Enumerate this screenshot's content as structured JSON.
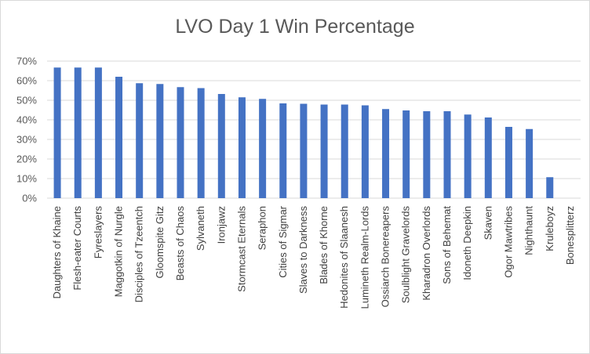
{
  "chart_data": {
    "type": "bar",
    "title": "LVO Day 1 Win Percentage",
    "xlabel": "",
    "ylabel": "",
    "ylim": [
      0,
      0.7
    ],
    "yticks": [
      "0%",
      "10%",
      "20%",
      "30%",
      "40%",
      "50%",
      "60%",
      "70%"
    ],
    "grid": true,
    "legend": "none",
    "colors": {
      "bar": "#4472c4",
      "grid": "#d9d9d9",
      "text": "#595959"
    },
    "categories": [
      "Daughters of Khaine",
      "Flesh-eater Courts",
      "Fyreslayers",
      "Maggotkin of Nurgle",
      "Disciples of Tzeentch",
      "Gloomspite Gitz",
      "Beasts of Chaos",
      "Sylvaneth",
      "Ironjawz",
      "Stormcast Eternals",
      "Seraphon",
      "Cities of Sigmar",
      "Slaves to Darkness",
      "Blades of Khorne",
      "Hedonites of Slaanesh",
      "Lumineth Realm-Lords",
      "Ossiarch Bonereapers",
      "Soulblight Gravelords",
      "Kharadron Overlords",
      "Sons of Behemat",
      "Idoneth Deepkin",
      "Skaven",
      "Ogor Mawtribes",
      "Nighthaunt",
      "Kruleboyz",
      "Bonesplitterz"
    ],
    "values": [
      0.667,
      0.667,
      0.667,
      0.62,
      0.587,
      0.583,
      0.567,
      0.562,
      0.532,
      0.515,
      0.507,
      0.484,
      0.482,
      0.478,
      0.478,
      0.474,
      0.455,
      0.448,
      0.444,
      0.444,
      0.427,
      0.412,
      0.364,
      0.353,
      0.107,
      0.0
    ]
  }
}
